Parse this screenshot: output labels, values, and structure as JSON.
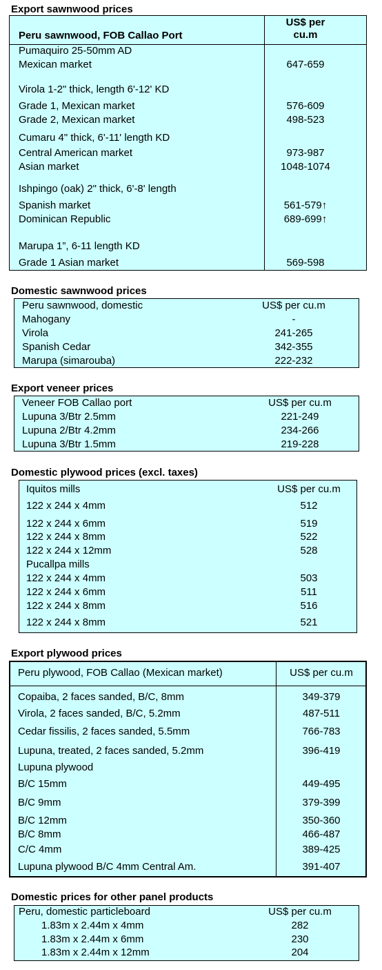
{
  "sections": [
    {
      "title": "Export sawnwood prices",
      "header": [
        "Peru sawnwood, FOB Callao Port",
        "US$ per cu.m"
      ],
      "rows": [
        [
          "Pumaquiro 25-50mm AD",
          null
        ],
        [
          "Mexican market",
          "647-659"
        ],
        [
          "Virola  1-2\" thick, length  6'-12' KD",
          null
        ],
        [
          "Grade 1, Mexican market",
          "576-609"
        ],
        [
          "Grade 2, Mexican market",
          "498-523"
        ],
        [
          "Cumaru 4\" thick, 6'-11' length KD",
          null
        ],
        [
          "Central American market",
          "973-987"
        ],
        [
          "Asian market",
          "1048-1074"
        ],
        [
          "Ishpingo (oak) 2\" thick, 6'-8' length",
          null
        ],
        [
          "Spanish market",
          "561-579↑"
        ],
        [
          "Dominican Republic",
          "689-699↑"
        ],
        [
          "Marupa  1”, 6-11 length KD",
          null
        ],
        [
          "Grade 1 Asian market",
          "569-598"
        ]
      ]
    },
    {
      "title": "Domestic sawnwood prices",
      "header": [
        "Peru sawnwood, domestic",
        "US$ per cu.m"
      ],
      "rows": [
        [
          "Mahogany",
          "-"
        ],
        [
          "Virola",
          "241-265"
        ],
        [
          "Spanish Cedar",
          "342-355"
        ],
        [
          "Marupa (simarouba)",
          "222-232"
        ]
      ]
    },
    {
      "title": "Export veneer prices",
      "header": [
        "Veneer  FOB Callao port",
        "US$ per cu.m"
      ],
      "rows": [
        [
          "Lupuna 3/Btr 2.5mm",
          "221-249"
        ],
        [
          "Lupuna 2/Btr 4.2mm",
          "234-266"
        ],
        [
          "Lupuna 3/Btr 1.5mm",
          "219-228"
        ]
      ]
    },
    {
      "title": "Domestic plywood prices (excl. taxes)",
      "header": [
        "Iquitos mills",
        "US$ per cu.m"
      ],
      "rows": [
        [
          "122 x 244 x 4mm",
          "512"
        ],
        [
          "122 x 244 x 6mm",
          "519"
        ],
        [
          "122 x 244 x 8mm",
          "522"
        ],
        [
          "122 x 244 x 12mm",
          "528"
        ],
        [
          "Pucallpa mills",
          null
        ],
        [
          "122 x 244 x 4mm",
          "503"
        ],
        [
          "122 x 244 x 6mm",
          "511"
        ],
        [
          "122 x 244 x 8mm",
          "516"
        ],
        [
          "122 x 244 x 8mm",
          "521"
        ]
      ]
    },
    {
      "title": "Export plywood prices",
      "header": [
        "Peru plywood, FOB Callao (Mexican market)",
        "US$ per cu.m"
      ],
      "rows": [
        [
          "Copaiba, 2 faces sanded, B/C, 8mm",
          "349-379"
        ],
        [
          "Virola, 2 faces sanded, B/C, 5.2mm",
          "487-511"
        ],
        [
          "Cedar fissilis, 2 faces sanded, 5.5mm",
          "766-783"
        ],
        [
          "Lupuna, treated, 2 faces sanded, 5.2mm",
          "396-419"
        ],
        [
          "Lupuna plywood",
          null
        ],
        [
          "B/C 15mm",
          "449-495"
        ],
        [
          "B/C 9mm",
          "379-399"
        ],
        [
          "B/C 12mm",
          "350-360"
        ],
        [
          "B/C 8mm",
          "466-487"
        ],
        [
          "C/C 4mm",
          "389-425"
        ],
        [
          "Lupuna plywood B/C 4mm Central Am.",
          "391-407"
        ]
      ]
    },
    {
      "title": "Domestic prices for other panel products",
      "header": [
        "Peru, domestic particleboard",
        "US$ per cu.m"
      ],
      "rows": [
        [
          "1.83m x 2.44m x 4mm",
          "282"
        ],
        [
          "1.83m x 2.44m x 6mm",
          "230"
        ],
        [
          "1.83m x 2.44m x 12mm",
          "204"
        ]
      ]
    }
  ]
}
